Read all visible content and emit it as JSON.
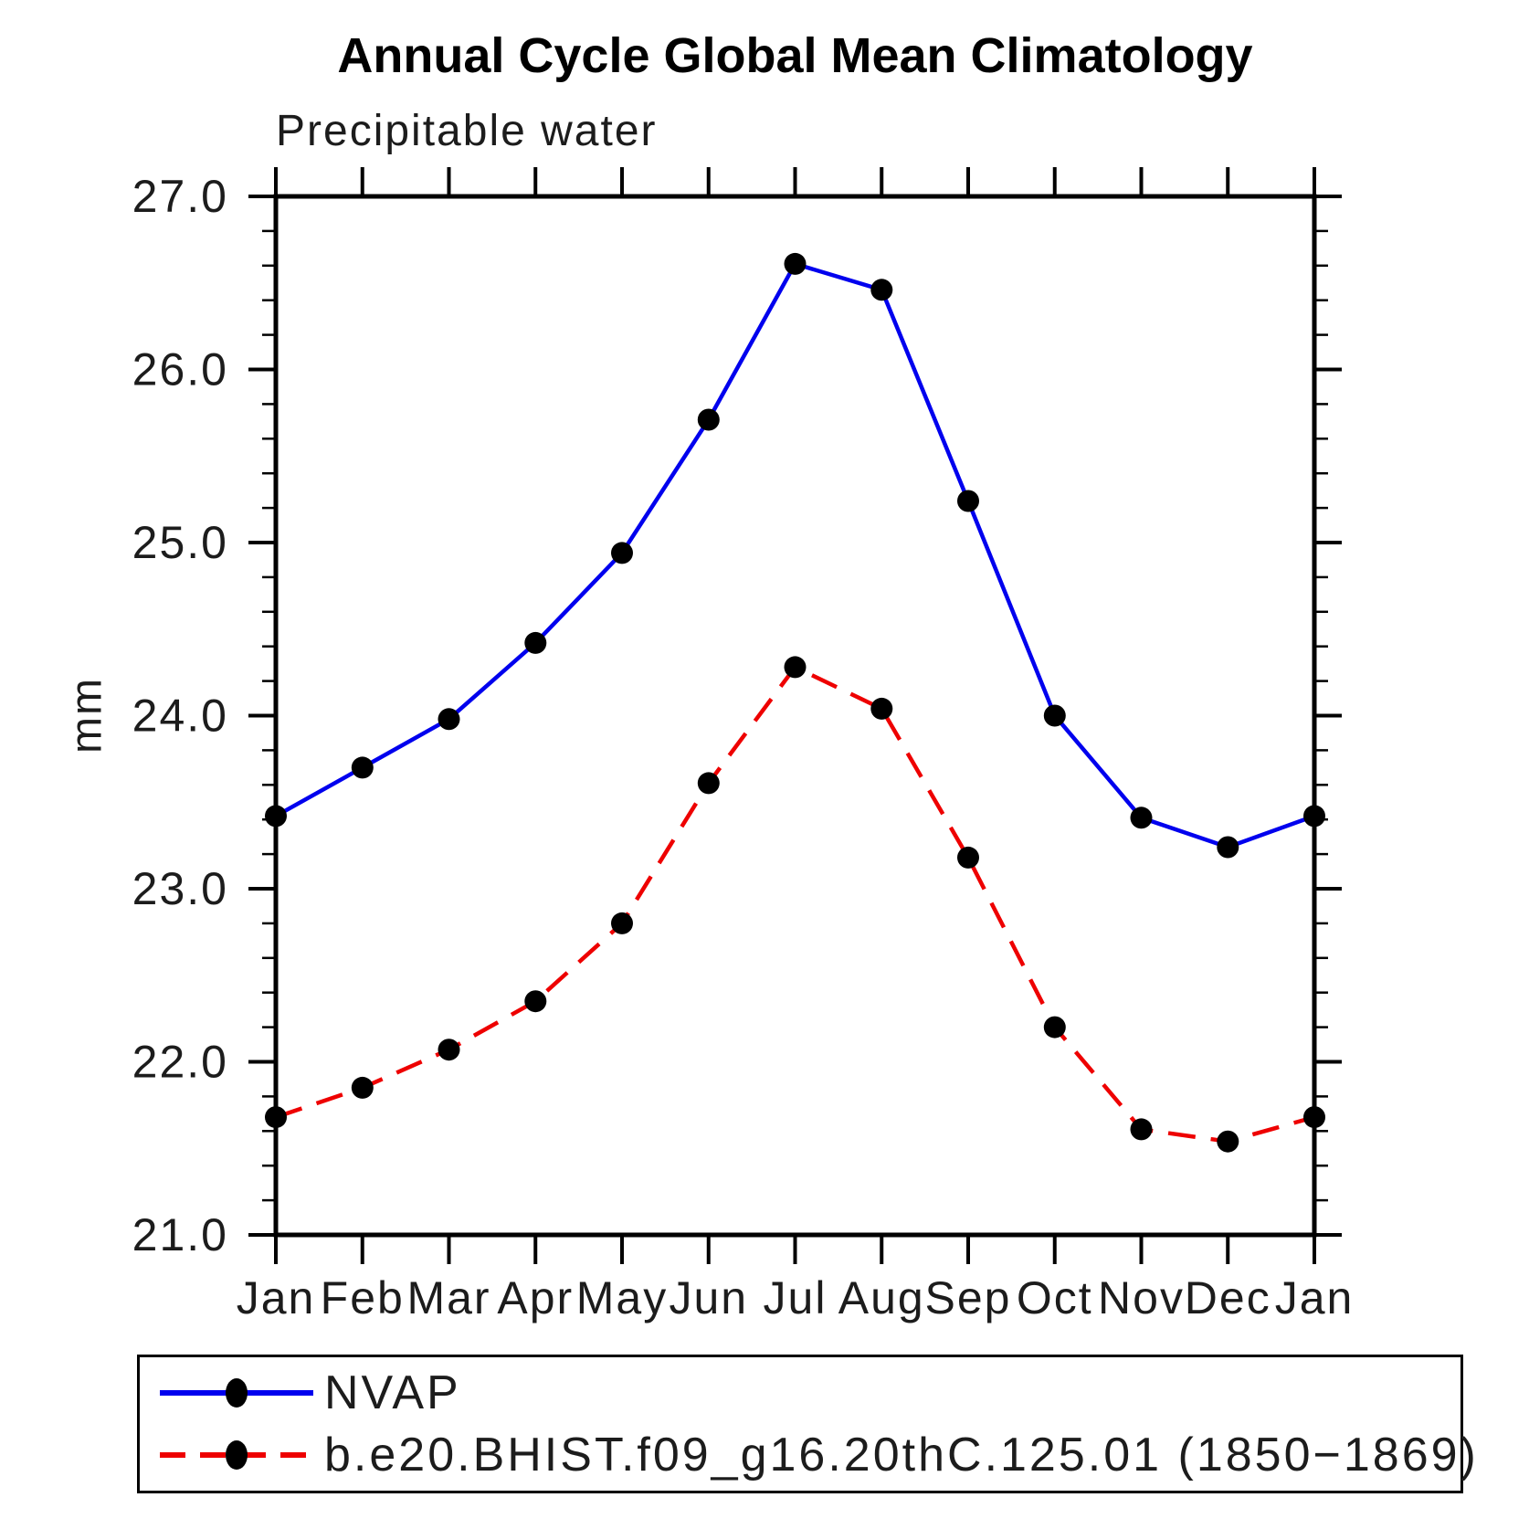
{
  "header": {
    "title": "Annual Cycle Global Mean Climatology",
    "subtitle": "Precipitable water"
  },
  "chart_data": {
    "type": "line",
    "title": "Annual Cycle Global Mean Climatology",
    "subtitle": "Precipitable water",
    "xlabel": "",
    "ylabel": "mm",
    "x_tick_labels": [
      "Jan",
      "Feb",
      "Mar",
      "Apr",
      "May",
      "Jun",
      "Jul",
      "Aug",
      "Sep",
      "Oct",
      "Nov",
      "Dec",
      "Jan"
    ],
    "ylim": [
      21.0,
      27.0
    ],
    "y_major_step": 1.0,
    "y_minor_step": 0.2,
    "y_tick_labels": [
      "21.0",
      "22.0",
      "23.0",
      "24.0",
      "25.0",
      "26.0",
      "27.0"
    ],
    "grid": false,
    "legend_position": "bottom",
    "axis_color": "#000000",
    "marker_color": "#000000",
    "series": [
      {
        "name": "NVAP",
        "style": "solid",
        "color": "#0000ee",
        "marker": "circle",
        "values": [
          23.42,
          23.7,
          23.98,
          24.42,
          24.94,
          25.71,
          26.61,
          26.46,
          25.24,
          24.0,
          23.41,
          23.24,
          23.42
        ]
      },
      {
        "name": "b.e20.BHIST.f09_g16.20thC.125.01 (1850−1869)",
        "style": "dashed",
        "color": "#ee0000",
        "marker": "circle",
        "values": [
          21.68,
          21.85,
          22.07,
          22.35,
          22.8,
          23.61,
          24.28,
          24.04,
          23.18,
          22.2,
          21.61,
          21.54,
          21.68
        ]
      }
    ]
  }
}
